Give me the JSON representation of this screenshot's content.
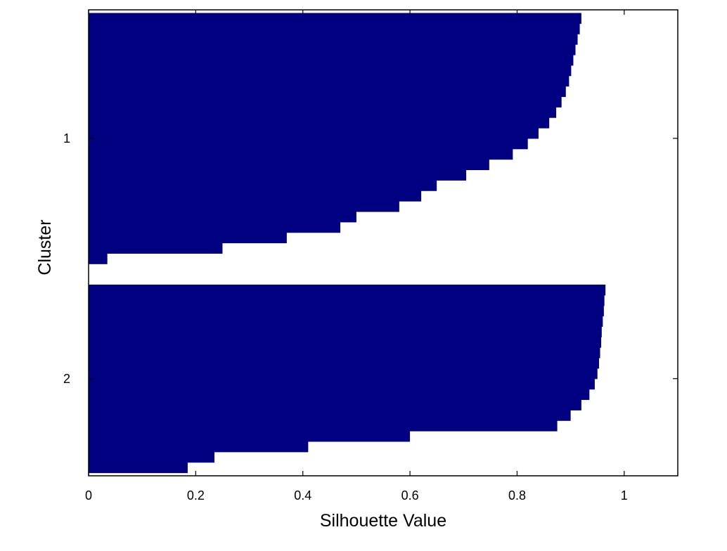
{
  "chart_data": {
    "type": "silhouette",
    "orientation": "horizontal",
    "xlabel": "Silhouette Value",
    "ylabel": "Cluster",
    "xlim": [
      0,
      1.1
    ],
    "xticks": [
      "0",
      "0.2",
      "0.4",
      "0.6",
      "0.8",
      "1"
    ],
    "xtick_values": [
      0,
      0.2,
      0.4,
      0.6,
      0.8,
      1
    ],
    "grid": false,
    "legend": "none",
    "bar_color": "#000080",
    "clusters": [
      {
        "label": "1",
        "sorted_silhouette_values": [
          0.92,
          0.917,
          0.913,
          0.909,
          0.905,
          0.901,
          0.897,
          0.891,
          0.883,
          0.873,
          0.86,
          0.84,
          0.82,
          0.792,
          0.748,
          0.705,
          0.65,
          0.621,
          0.58,
          0.5,
          0.47,
          0.37,
          0.25,
          0.035
        ]
      },
      {
        "label": "2",
        "sorted_silhouette_values": [
          0.965,
          0.963,
          0.962,
          0.96,
          0.958,
          0.957,
          0.955,
          0.953,
          0.95,
          0.945,
          0.935,
          0.92,
          0.9,
          0.875,
          0.6,
          0.41,
          0.235,
          0.185
        ]
      }
    ]
  }
}
